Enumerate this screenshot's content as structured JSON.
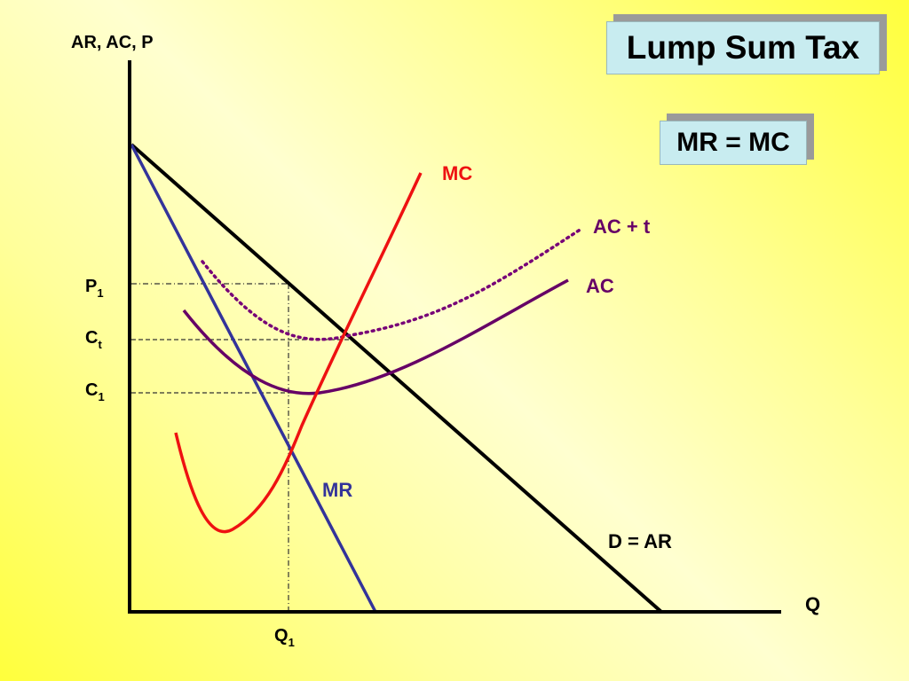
{
  "slide": {
    "title": "Lump Sum Tax",
    "rule": "MR = MC"
  },
  "diagram": {
    "y_axis_label": "AR, AC, P",
    "x_axis_label": "Q",
    "price_labels": [
      {
        "main": "P",
        "sub": "1"
      },
      {
        "main": "C",
        "sub": "t"
      },
      {
        "main": "C",
        "sub": "1"
      }
    ],
    "quantity_label": {
      "main": "Q",
      "sub": "1"
    },
    "curves": {
      "mc": "MC",
      "ac_plus_t": "AC + t",
      "ac": "AC",
      "mr": "MR",
      "demand": "D = AR"
    },
    "colors": {
      "demand": "#000000",
      "mr": "#33339a",
      "mc": "#ee1111",
      "ac": "#660066",
      "ac_plus_t": "#770077",
      "guides": "#333333"
    }
  }
}
